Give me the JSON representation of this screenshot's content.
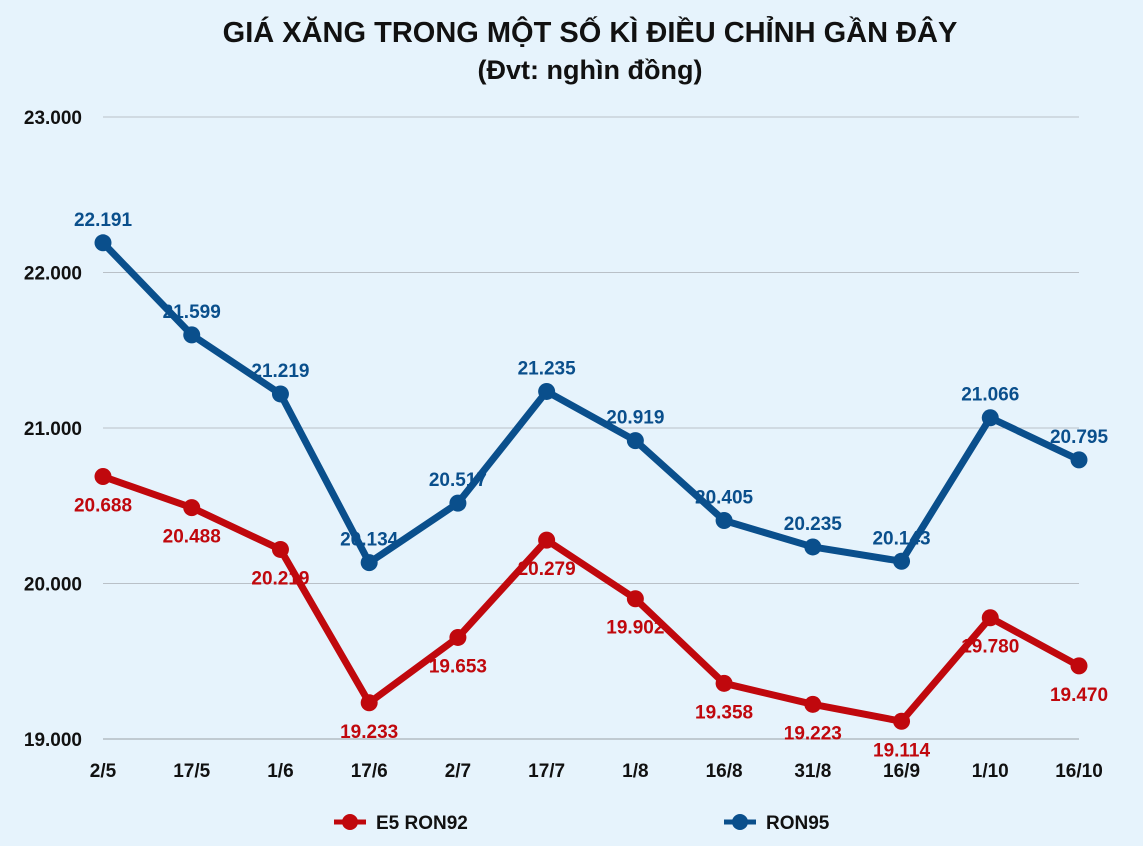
{
  "chart_data": {
    "type": "line",
    "title": "GIÁ XĂNG TRONG MỘT SỐ KÌ ĐIỀU CHỈNH GẦN ĐÂY",
    "subtitle": "(Đvt: nghìn đồng)",
    "categories": [
      "2/5",
      "17/5",
      "1/6",
      "17/6",
      "2/7",
      "17/7",
      "1/8",
      "16/8",
      "31/8",
      "16/9",
      "1/10",
      "16/10"
    ],
    "series": [
      {
        "name": "E5 RON92",
        "color": "#c0080d",
        "values": [
          20688,
          20488,
          20219,
          19233,
          19653,
          20279,
          19902,
          19358,
          19223,
          19114,
          19780,
          19470
        ],
        "labels": [
          "20.688",
          "20.488",
          "20.219",
          "19.233",
          "19.653",
          "20.279",
          "19.902",
          "19.358",
          "19.223",
          "19.114",
          "19.780",
          "19.470"
        ]
      },
      {
        "name": "RON95",
        "color": "#0a4f8c",
        "values": [
          22191,
          21599,
          21219,
          20134,
          20517,
          21235,
          20919,
          20405,
          20235,
          20143,
          21066,
          20795
        ],
        "labels": [
          "22.191",
          "21.599",
          "21.219",
          "20.134",
          "20.517",
          "21.235",
          "20.919",
          "20.405",
          "20.235",
          "20.143",
          "21.066",
          "20.795"
        ]
      }
    ],
    "ylim": [
      19000,
      23000
    ],
    "yticks": [
      19000,
      20000,
      21000,
      22000,
      23000
    ],
    "ytick_labels": [
      "19.000",
      "20.000",
      "21.000",
      "22.000",
      "23.000"
    ],
    "grid": true,
    "legend_position": "bottom"
  }
}
